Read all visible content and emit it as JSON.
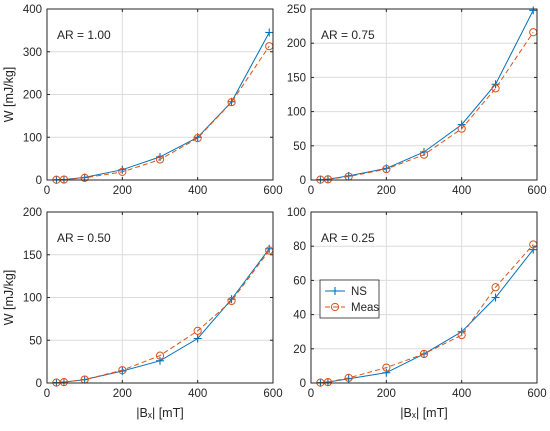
{
  "colors": {
    "ns": "#0072BD",
    "meas": "#D95319",
    "axis": "#262626",
    "grid": "#dcdcdc"
  },
  "chart_data": [
    {
      "type": "line",
      "annotation": "AR = 1.00",
      "xlabel": "",
      "ylabel": "W [mJ/kg]",
      "xlim": [
        0,
        600
      ],
      "ylim": [
        0,
        400
      ],
      "xticks": [
        "0",
        "200",
        "400",
        "600"
      ],
      "yticks": [
        "0",
        "100",
        "200",
        "300",
        "400"
      ],
      "grid": true,
      "series": [
        {
          "name": "NS",
          "x": [
            25,
            45,
            100,
            200,
            300,
            400,
            490,
            590
          ],
          "values": [
            0.5,
            1,
            6,
            24,
            54,
            100,
            183,
            345
          ]
        },
        {
          "name": "Meas",
          "x": [
            25,
            45,
            100,
            200,
            300,
            400,
            490,
            590
          ],
          "values": [
            0.5,
            1,
            5,
            19,
            48,
            98,
            182,
            313
          ]
        }
      ]
    },
    {
      "type": "line",
      "annotation": "AR = 0.75",
      "xlabel": "",
      "ylabel": "",
      "xlim": [
        0,
        600
      ],
      "ylim": [
        0,
        250
      ],
      "xticks": [
        "0",
        "200",
        "400",
        "600"
      ],
      "yticks": [
        "0",
        "50",
        "100",
        "150",
        "200",
        "250"
      ],
      "grid": true,
      "series": [
        {
          "name": "NS",
          "x": [
            25,
            45,
            100,
            200,
            300,
            400,
            490,
            590
          ],
          "values": [
            0.5,
            1,
            6,
            17,
            41,
            81,
            140,
            248
          ]
        },
        {
          "name": "Meas",
          "x": [
            25,
            45,
            100,
            200,
            300,
            400,
            490,
            590
          ],
          "values": [
            0.5,
            1,
            5,
            16,
            37,
            75,
            134,
            216
          ]
        }
      ]
    },
    {
      "type": "line",
      "annotation": "AR = 0.50",
      "xlabel": "|Bₓ| [mT]",
      "ylabel": "W [mJ/kg]",
      "xlim": [
        0,
        600
      ],
      "ylim": [
        0,
        200
      ],
      "xticks": [
        "0",
        "200",
        "400",
        "600"
      ],
      "yticks": [
        "0",
        "50",
        "100",
        "150",
        "200"
      ],
      "grid": true,
      "series": [
        {
          "name": "NS",
          "x": [
            25,
            45,
            100,
            200,
            300,
            400,
            490,
            590
          ],
          "values": [
            0.5,
            1,
            4,
            14,
            26,
            52,
            98,
            157
          ]
        },
        {
          "name": "Meas",
          "x": [
            25,
            45,
            100,
            200,
            300,
            400,
            490,
            590
          ],
          "values": [
            0.5,
            1,
            4,
            15,
            32,
            61,
            96,
            155
          ]
        }
      ]
    },
    {
      "type": "line",
      "annotation": "AR = 0.25",
      "xlabel": "|Bₓ| [mT]",
      "ylabel": "",
      "xlim": [
        0,
        600
      ],
      "ylim": [
        0,
        100
      ],
      "xticks": [
        "0",
        "200",
        "400",
        "600"
      ],
      "yticks": [
        "0",
        "20",
        "40",
        "60",
        "80",
        "100"
      ],
      "grid": true,
      "legend": {
        "position": "middle-left",
        "entries": [
          "NS",
          "Meas"
        ]
      },
      "series": [
        {
          "name": "NS",
          "x": [
            25,
            45,
            100,
            200,
            300,
            400,
            490,
            590
          ],
          "values": [
            0.2,
            0.5,
            2.5,
            6,
            17,
            30,
            50,
            78
          ]
        },
        {
          "name": "Meas",
          "x": [
            25,
            45,
            100,
            200,
            300,
            400,
            490,
            590
          ],
          "values": [
            0.2,
            0.5,
            3,
            9,
            17,
            28,
            56,
            81
          ]
        }
      ]
    }
  ]
}
